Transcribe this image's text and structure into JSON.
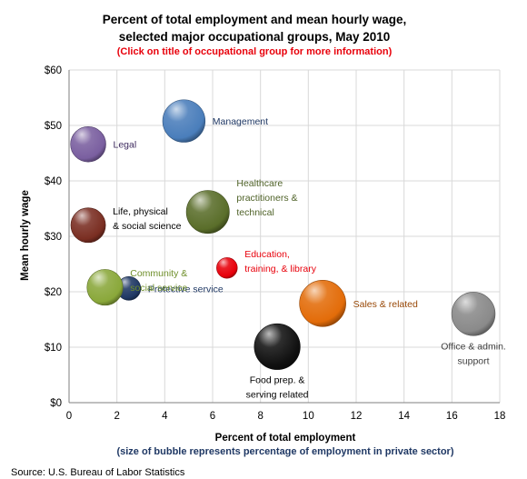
{
  "chart_data": {
    "type": "scatter",
    "title_line1": "Percent of total employment and mean hourly wage,",
    "title_line2": "selected major occupational groups, May 2010",
    "note": "(Click on title of occupational  group for more information)",
    "xlabel": "Percent of total employment",
    "xlabel_note": "(size of bubble represents percentage of employment in private sector)",
    "ylabel": "Mean hourly wage",
    "source": "Source: U.S. Bureau of Labor Statistics",
    "xlim": [
      0,
      18
    ],
    "ylim": [
      0,
      60
    ],
    "x_ticks": [
      0,
      2,
      4,
      6,
      8,
      10,
      12,
      14,
      16,
      18
    ],
    "x_tick_labels": [
      "0",
      "2",
      "4",
      "6",
      "8",
      "10",
      "12",
      "14",
      "16",
      "18"
    ],
    "y_ticks": [
      0,
      10,
      20,
      30,
      40,
      50,
      60
    ],
    "y_tick_labels": [
      "$0",
      "$10",
      "$20",
      "$30",
      "$40",
      "$50",
      "$60"
    ],
    "grid": true,
    "series": [
      {
        "label_lines": [
          "Management"
        ],
        "x": 4.8,
        "y": 50.8,
        "size": 84,
        "color": "#4a7ebb",
        "label_color": "#1f3864",
        "label_anchor": "start"
      },
      {
        "label_lines": [
          "Legal"
        ],
        "x": 0.8,
        "y": 46.6,
        "size": 58,
        "color": "#7a5fa0",
        "label_color": "#3d2a5e",
        "label_anchor": "start"
      },
      {
        "label_lines": [
          "Life, physical",
          "& social science"
        ],
        "x": 0.8,
        "y": 32.0,
        "size": 56,
        "color": "#7a2e22",
        "label_color": "#000000",
        "label_anchor": "start"
      },
      {
        "label_lines": [
          "Healthcare",
          "practitioners &",
          "technical"
        ],
        "x": 5.8,
        "y": 34.4,
        "size": 86,
        "color": "#5a6e2a",
        "label_color": "#4f6228",
        "label_anchor": "start"
      },
      {
        "label_lines": [
          "Education,",
          "training, & library"
        ],
        "x": 6.6,
        "y": 24.3,
        "size": 20,
        "color": "#e8000b",
        "label_color": "#e8000b",
        "label_anchor": "start"
      },
      {
        "label_lines": [
          "Protective service"
        ],
        "x": 2.5,
        "y": 20.6,
        "size": 26,
        "color": "#1f3864",
        "label_color": "#1f3864",
        "label_anchor": "start"
      },
      {
        "label_lines": [
          "Community &",
          "social  service"
        ],
        "x": 1.5,
        "y": 20.8,
        "size": 60,
        "color": "#8aa83a",
        "label_color": "#6f8f2b",
        "label_anchor": "start"
      },
      {
        "label_lines": [
          "Sales & related"
        ],
        "x": 10.6,
        "y": 17.9,
        "size": 100,
        "color": "#e36c09",
        "label_color": "#984807",
        "label_anchor": "start"
      },
      {
        "label_lines": [
          "Office & admin.",
          "support"
        ],
        "x": 16.9,
        "y": 16.0,
        "size": 88,
        "color": "#8a8a8a",
        "label_color": "#404040",
        "label_anchor": "middle"
      },
      {
        "label_lines": [
          "Food prep.  &",
          "serving related"
        ],
        "x": 8.7,
        "y": 10.1,
        "size": 98,
        "color": "#111111",
        "label_color": "#000000",
        "label_anchor": "middle"
      }
    ]
  }
}
